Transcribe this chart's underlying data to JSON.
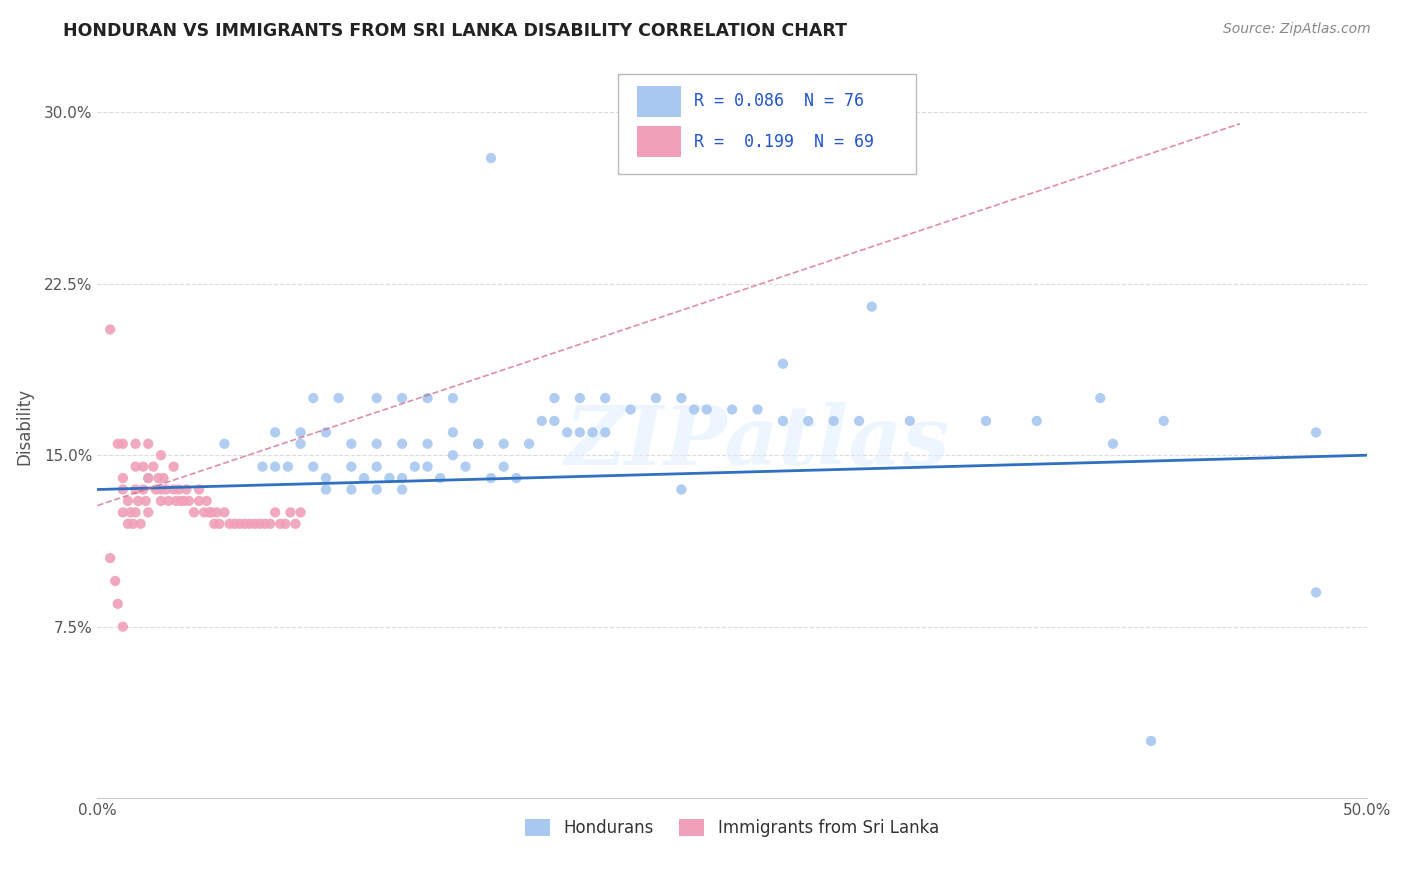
{
  "title": "HONDURAN VS IMMIGRANTS FROM SRI LANKA DISABILITY CORRELATION CHART",
  "source": "Source: ZipAtlas.com",
  "ylabel": "Disability",
  "xlim": [
    0.0,
    0.5
  ],
  "ylim": [
    0.0,
    0.325
  ],
  "honduran_color": "#a8c8f0",
  "srilanka_color": "#f0a0b8",
  "honduran_line_color": "#3070c0",
  "srilanka_line_color": "#d06080",
  "R_honduran": 0.086,
  "N_honduran": 76,
  "R_srilanka": 0.199,
  "N_srilanka": 69,
  "legend_label_1": "Hondurans",
  "legend_label_2": "Immigrants from Sri Lanka",
  "watermark": "ZIPatlas",
  "background_color": "#ffffff",
  "grid_color": "#dddddd",
  "legend_text_color": "#2255cc",
  "title_color": "#222222",
  "source_color": "#888888",
  "tick_color": "#555555",
  "ylabel_color": "#555555"
}
